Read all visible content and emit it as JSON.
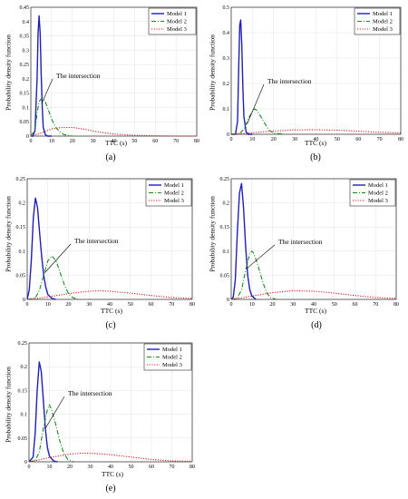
{
  "chart_data": [
    {
      "panel": "a",
      "caption": "(a)",
      "type": "line",
      "xlabel": "TTC (s)",
      "ylabel": "Probability density function",
      "xlim": [
        0,
        80
      ],
      "ylim": [
        0,
        0.45
      ],
      "xticks": [
        0,
        10,
        20,
        30,
        40,
        50,
        60,
        70,
        80
      ],
      "yticks": [
        0,
        0.05,
        0.1,
        0.15,
        0.2,
        0.25,
        0.3,
        0.35,
        0.4,
        0.45
      ],
      "ytick_labels": [
        "0",
        "0.05",
        "0.1",
        "0.15",
        "0.2",
        "0.25",
        "0.3",
        "0.35",
        "0.4",
        "0.45"
      ],
      "annotation": "The intersection",
      "annotation_point": [
        5.3,
        0.115
      ],
      "legend_position": "top-right",
      "grid": true,
      "series": [
        {
          "name": "Model 1",
          "color": "#1f1fb4",
          "style": "solid",
          "x": [
            0,
            1,
            2,
            3,
            3.5,
            4,
            4.5,
            5,
            5.5,
            6,
            7,
            8,
            10
          ],
          "y": [
            0,
            0.0,
            0.02,
            0.2,
            0.36,
            0.42,
            0.36,
            0.22,
            0.1,
            0.03,
            0.005,
            0,
            0
          ]
        },
        {
          "name": "Model 2",
          "color": "#1a8c1a",
          "style": "dashdot",
          "x": [
            0,
            2,
            3,
            4,
            5,
            6,
            7,
            8,
            10,
            12,
            14,
            16,
            20,
            25
          ],
          "y": [
            0,
            0.02,
            0.08,
            0.12,
            0.13,
            0.13,
            0.12,
            0.1,
            0.06,
            0.03,
            0.015,
            0.005,
            0,
            0
          ]
        },
        {
          "name": "Model 3",
          "color": "#cc1f1f",
          "style": "dotted",
          "x": [
            0,
            5,
            10,
            15,
            20,
            25,
            30,
            35,
            40,
            50,
            60,
            70,
            80
          ],
          "y": [
            0,
            0.01,
            0.025,
            0.03,
            0.03,
            0.025,
            0.018,
            0.012,
            0.007,
            0.003,
            0.001,
            0,
            0
          ]
        }
      ]
    },
    {
      "panel": "b",
      "caption": "(b)",
      "type": "line",
      "xlabel": "TTC (s)",
      "ylabel": "Probability density function",
      "xlim": [
        0,
        80
      ],
      "ylim": [
        0,
        0.5
      ],
      "xticks": [
        0,
        10,
        20,
        30,
        40,
        50,
        60,
        70,
        80
      ],
      "yticks": [
        0,
        0.1,
        0.2,
        0.3,
        0.4,
        0.5
      ],
      "ytick_labels": [
        "0",
        "0.1",
        "0.2",
        "0.3",
        "0.4",
        "0.5"
      ],
      "annotation": "The intersection",
      "annotation_point": [
        7.5,
        0.04
      ],
      "legend_position": "top-right",
      "grid": true,
      "series": [
        {
          "name": "Model 1",
          "color": "#1f1fb4",
          "style": "solid",
          "x": [
            0,
            2,
            3,
            3.5,
            4,
            4.5,
            5,
            5.5,
            6,
            7,
            8,
            10
          ],
          "y": [
            0,
            0.0,
            0.05,
            0.25,
            0.43,
            0.45,
            0.35,
            0.18,
            0.07,
            0.01,
            0,
            0
          ]
        },
        {
          "name": "Model 2",
          "color": "#1a8c1a",
          "style": "dashdot",
          "x": [
            0,
            4,
            6,
            8,
            10,
            11,
            12,
            14,
            16,
            18,
            20,
            25
          ],
          "y": [
            0,
            0.003,
            0.02,
            0.06,
            0.09,
            0.1,
            0.095,
            0.07,
            0.04,
            0.015,
            0.005,
            0
          ]
        },
        {
          "name": "Model 3",
          "color": "#cc1f1f",
          "style": "dotted",
          "x": [
            0,
            5,
            10,
            20,
            30,
            40,
            50,
            60,
            70,
            80
          ],
          "y": [
            0,
            0.002,
            0.006,
            0.013,
            0.017,
            0.018,
            0.016,
            0.012,
            0.008,
            0.005
          ]
        }
      ]
    },
    {
      "panel": "c",
      "caption": "(c)",
      "type": "line",
      "xlabel": "TTC (s)",
      "ylabel": "Probability density function",
      "xlim": [
        0,
        80
      ],
      "ylim": [
        0,
        0.25
      ],
      "xticks": [
        0,
        10,
        20,
        30,
        40,
        50,
        60,
        70,
        80
      ],
      "yticks": [
        0,
        0.05,
        0.1,
        0.15,
        0.2,
        0.25
      ],
      "ytick_labels": [
        "0",
        "0.05",
        "0.1",
        "0.15",
        "0.2",
        "0.25"
      ],
      "annotation": "The intersection",
      "annotation_point": [
        8.5,
        0.055
      ],
      "legend_position": "top-right",
      "grid": true,
      "series": [
        {
          "name": "Model 1",
          "color": "#1f1fb4",
          "style": "solid",
          "x": [
            0,
            1,
            2,
            3,
            4,
            5,
            6,
            7,
            8,
            9,
            10,
            12,
            14
          ],
          "y": [
            0,
            0.02,
            0.08,
            0.17,
            0.21,
            0.19,
            0.14,
            0.09,
            0.05,
            0.025,
            0.01,
            0.002,
            0
          ]
        },
        {
          "name": "Model 2",
          "color": "#1a8c1a",
          "style": "dashdot",
          "x": [
            0,
            4,
            6,
            8,
            10,
            12,
            14,
            16,
            18,
            20,
            22,
            25
          ],
          "y": [
            0,
            0.003,
            0.02,
            0.05,
            0.08,
            0.09,
            0.08,
            0.055,
            0.03,
            0.012,
            0.004,
            0
          ]
        },
        {
          "name": "Model 3",
          "color": "#cc1f1f",
          "style": "dotted",
          "x": [
            0,
            5,
            10,
            20,
            30,
            35,
            40,
            50,
            60,
            70,
            80
          ],
          "y": [
            0,
            0.002,
            0.005,
            0.012,
            0.017,
            0.018,
            0.017,
            0.013,
            0.008,
            0.004,
            0.002
          ]
        }
      ]
    },
    {
      "panel": "d",
      "caption": "(d)",
      "type": "line",
      "xlabel": "TTC (s)",
      "ylabel": "Probability density function",
      "xlim": [
        0,
        80
      ],
      "ylim": [
        0,
        0.25
      ],
      "xticks": [
        0,
        10,
        20,
        30,
        40,
        50,
        60,
        70,
        80
      ],
      "yticks": [
        0,
        0.05,
        0.1,
        0.15,
        0.2,
        0.25
      ],
      "ytick_labels": [
        "0",
        "0.05",
        "0.1",
        "0.15",
        "0.2",
        "0.25"
      ],
      "annotation": "The intersection",
      "annotation_point": [
        7.8,
        0.065
      ],
      "legend_position": "top-right",
      "grid": true,
      "series": [
        {
          "name": "Model 1",
          "color": "#1f1fb4",
          "style": "solid",
          "x": [
            0,
            1,
            2,
            3,
            4,
            5,
            6,
            7,
            8,
            9,
            10,
            12
          ],
          "y": [
            0,
            0.005,
            0.04,
            0.14,
            0.22,
            0.24,
            0.19,
            0.11,
            0.05,
            0.02,
            0.007,
            0
          ]
        },
        {
          "name": "Model 2",
          "color": "#1a8c1a",
          "style": "dashdot",
          "x": [
            0,
            3,
            5,
            7,
            9,
            10,
            11,
            13,
            15,
            17,
            19,
            22
          ],
          "y": [
            0,
            0.003,
            0.02,
            0.06,
            0.095,
            0.1,
            0.095,
            0.07,
            0.04,
            0.015,
            0.004,
            0
          ]
        },
        {
          "name": "Model 3",
          "color": "#cc1f1f",
          "style": "dotted",
          "x": [
            0,
            5,
            10,
            20,
            30,
            40,
            50,
            60,
            70,
            80
          ],
          "y": [
            0,
            0.003,
            0.007,
            0.014,
            0.018,
            0.017,
            0.013,
            0.008,
            0.004,
            0.002
          ]
        }
      ]
    },
    {
      "panel": "e",
      "caption": "(e)",
      "type": "line",
      "xlabel": "TTC (s)",
      "ylabel": "Probability density function",
      "xlim": [
        0,
        80
      ],
      "ylim": [
        0,
        0.25
      ],
      "xticks": [
        0,
        10,
        20,
        30,
        40,
        50,
        60,
        70,
        80
      ],
      "yticks": [
        0,
        0.05,
        0.1,
        0.15,
        0.2,
        0.25
      ],
      "ytick_labels": [
        "0",
        "0.05",
        "0.1",
        "0.15",
        "0.2",
        "0.25"
      ],
      "annotation": "The intersection",
      "annotation_point": [
        8,
        0.07
      ],
      "legend_position": "top-right",
      "grid": true,
      "series": [
        {
          "name": "Model 1",
          "color": "#1f1fb4",
          "style": "solid",
          "x": [
            0,
            2,
            3,
            4,
            5,
            6,
            7,
            8,
            9,
            10,
            12,
            14
          ],
          "y": [
            0,
            0.01,
            0.06,
            0.15,
            0.21,
            0.19,
            0.13,
            0.07,
            0.03,
            0.012,
            0.002,
            0
          ]
        },
        {
          "name": "Model 2",
          "color": "#1a8c1a",
          "style": "dashdot",
          "x": [
            0,
            3,
            5,
            7,
            9,
            10,
            11,
            13,
            15,
            17,
            19,
            22
          ],
          "y": [
            0,
            0.003,
            0.02,
            0.07,
            0.11,
            0.12,
            0.11,
            0.08,
            0.045,
            0.018,
            0.005,
            0
          ]
        },
        {
          "name": "Model 3",
          "color": "#cc1f1f",
          "style": "dotted",
          "x": [
            0,
            5,
            10,
            20,
            25,
            30,
            40,
            50,
            60,
            70,
            80
          ],
          "y": [
            0,
            0.004,
            0.009,
            0.016,
            0.018,
            0.018,
            0.015,
            0.01,
            0.005,
            0.002,
            0.001
          ]
        }
      ]
    }
  ]
}
